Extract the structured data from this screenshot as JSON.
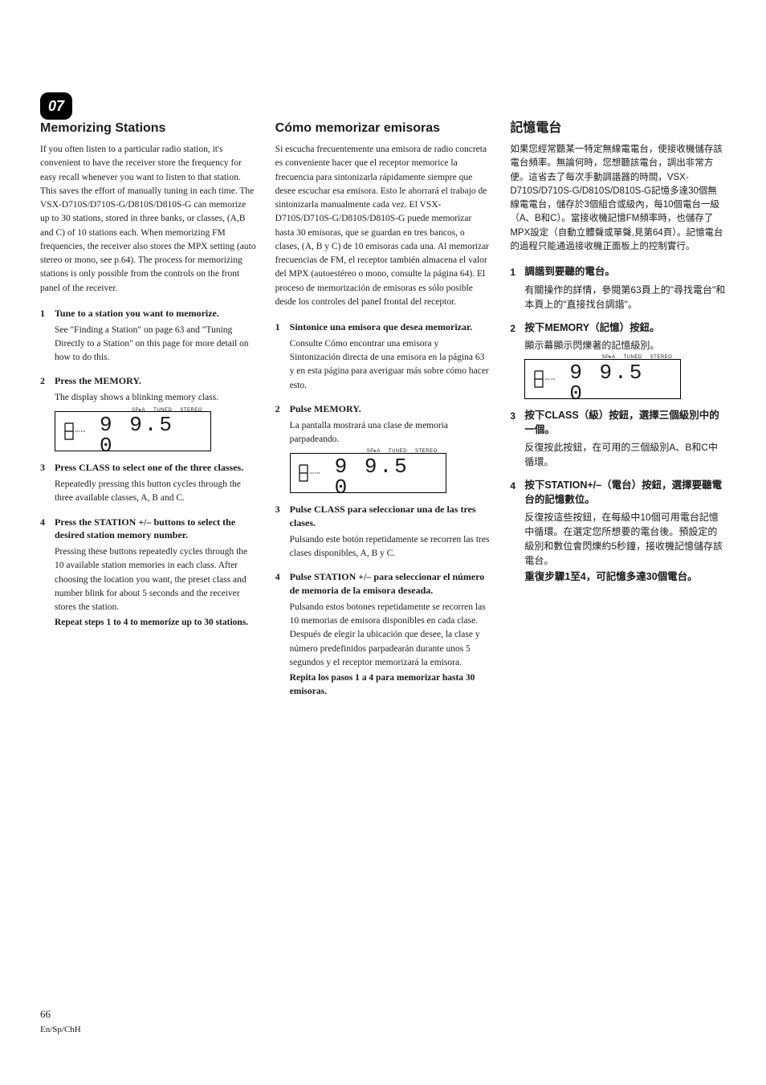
{
  "chapter": "07",
  "page_number": "66",
  "page_langs": "En/Sp/ChH",
  "display": {
    "indicators": [
      "SP▸A",
      "TUNED",
      "STEREO"
    ],
    "freq": "9 9.5 0"
  },
  "col_en": {
    "title": "Memorizing Stations",
    "intro": "If you often listen to a particular radio station, it's convenient to have the receiver store the frequency for easy recall whenever you want to listen to that station. This saves the effort of manually tuning in each time. The VSX-D710S/D710S-G/D810S/D810S-G can memorize up to 30 stations, stored in three banks, or classes, (A,B and C) of 10 stations each. When memorizing FM frequencies, the receiver also stores the MPX setting (auto stereo or mono, see p.64). The process for memorizing stations is only possible from the controls on the front panel of the receiver.",
    "steps": [
      {
        "num": "1",
        "title": "Tune to a station you want to memorize.",
        "body": "See \"Finding a Station\" on page 63 and \"Tuning Directly to a Station\" on this page for more detail on how to do this."
      },
      {
        "num": "2",
        "title": "Press the MEMORY.",
        "body": "The display shows a blinking memory class.",
        "show_display": true
      },
      {
        "num": "3",
        "title": "Press CLASS to select one of the three classes.",
        "body": "Repeatedly pressing this button cycles through the three available classes, A, B and C."
      },
      {
        "num": "4",
        "title": "Press the STATION +/– buttons to select the desired station memory number.",
        "body": "Pressing these buttons repeatedly cycles through the 10 available station memories in each class. After choosing the location you want, the preset class and number blink for about 5 seconds and the receiver stores the station.",
        "tail_bold": "Repeat steps 1 to 4 to memorize up to 30 stations."
      }
    ]
  },
  "col_es": {
    "title": "Cómo memorizar emisoras",
    "intro": "Si escucha frecuentemente una emisora de radio concreta es conveniente hacer que el receptor memorice la frecuencia para sintonizarla rápidamente siempre que desee escuchar esa emisora. Esto le ahorrará el trabajo de sintonizarla manualmente cada vez. El VSX-D710S/D710S-G/D810S/D810S-G puede memorizar hasta 30 emisoras, que se guardan en tres bancos, o clases, (A, B y C) de 10 emisoras cada una. Al memorizar frecuencias de FM, el receptor también almacena el valor del MPX (autoestéreo o mono, consulte la página 64). El proceso de memorización de emisoras es sólo posible desde los controles del panel frontal del receptor.",
    "steps": [
      {
        "num": "1",
        "title": "Sintonice una emisora que desea memorizar.",
        "body": "Consulte Cómo encontrar una emisora y Sintonización directa de una emisora en la página 63 y en esta página para averiguar más sobre cómo hacer esto."
      },
      {
        "num": "2",
        "title": "Pulse MEMORY.",
        "body": "La pantalla mostrará una clase de memoria parpadeando.",
        "show_display": true
      },
      {
        "num": "3",
        "title": "Pulse CLASS para seleccionar una de las tres clases.",
        "body": "Pulsando este botón repetidamente se recorren las tres clases disponibles, A, B y C."
      },
      {
        "num": "4",
        "title": "Pulse STATION +/– para seleccionar el número de memoria de la emisora deseada.",
        "body": "Pulsando estos botones repetidamente se recorren las 10 memorias de emisora disponibles en cada clase. Después de elegir la ubicación que desee, la clase y número predefinidos parpadearán durante unos 5 segundos y el receptor memorizará la emisora.",
        "tail_bold": "Repita los pasos 1 a 4 para memorizar hasta 30 emisoras."
      }
    ]
  },
  "col_zh": {
    "title": "記憶電台",
    "intro": "如果您經常聽某一特定無線電電台，使接收機儲存該電台頻率。無論何時，您想聽該電台，調出非常方便。這省去了每次手動調諧器的時間，VSX-D710S/D710S-G/D810S/D810S-G記憶多達30個無線電電台，儲存於3個組合或級內，每10個電台一級（A、B和C）。當接收機記憶FM頻率時，也儲存了MPX設定（自動立體聲或單聲,見第64頁）。記憶電台的過程只能通過接收機正面板上的控制實行。",
    "steps": [
      {
        "num": "1",
        "title": "調諧到要聽的電台。",
        "body": "有關操作的詳情，參閱第63頁上的\"尋找電台\"和本頁上的\"直接找台調諧\"。"
      },
      {
        "num": "2",
        "title": "按下MEMORY（記憶）按鈕。",
        "body": "顯示幕顯示閃爍著的記憶級別。",
        "show_display": true
      },
      {
        "num": "3",
        "title": "按下CLASS（級）按鈕，選擇三個級別中的一個。",
        "body": "反復按此按鈕，在可用的三個級別A、B和C中循環。"
      },
      {
        "num": "4",
        "title": "按下STATION+/–（電台）按鈕，選擇要聽電台的記憶數位。",
        "body": "反復按這些按鈕，在每級中10個可用電台記憶中循環。在選定您所想要的電台後。預設定的級別和數位會閃爍約5秒鐘，接收機記憶儲存該電台。",
        "tail_bold": "重復步驟1至4，可記憶多達30個電台。"
      }
    ]
  }
}
